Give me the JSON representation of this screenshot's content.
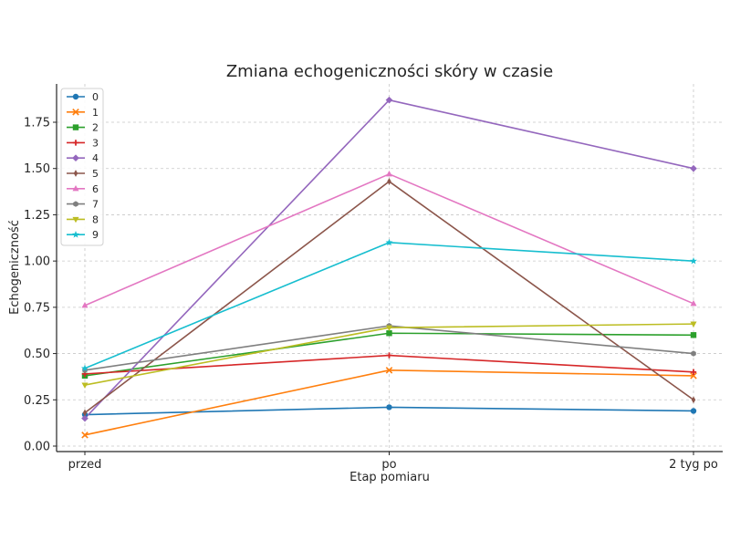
{
  "chart_data": {
    "type": "line",
    "title": "Zmiana echogeniczności skóry w czasie",
    "xlabel": "Etap pomiaru",
    "ylabel": "Echogeniczność",
    "categories": [
      "przed",
      "po",
      "2 tyg po"
    ],
    "ylim": [
      -0.03,
      1.95
    ],
    "yticks": [
      0.0,
      0.25,
      0.5,
      0.75,
      1.0,
      1.25,
      1.5,
      1.75
    ],
    "ytick_labels": [
      "0.00",
      "0.25",
      "0.50",
      "0.75",
      "1.00",
      "1.25",
      "1.50",
      "1.75"
    ],
    "grid": true,
    "legend_position": "top-left",
    "series": [
      {
        "name": "0",
        "color": "#1f77b4",
        "marker": "circle",
        "values": [
          0.17,
          0.21,
          0.19
        ]
      },
      {
        "name": "1",
        "color": "#ff7f0e",
        "marker": "x",
        "values": [
          0.06,
          0.41,
          0.38
        ]
      },
      {
        "name": "2",
        "color": "#2ca02c",
        "marker": "square",
        "values": [
          0.38,
          0.61,
          0.6
        ]
      },
      {
        "name": "3",
        "color": "#d62728",
        "marker": "plus",
        "values": [
          0.39,
          0.49,
          0.4
        ]
      },
      {
        "name": "4",
        "color": "#9467bd",
        "marker": "diamond",
        "values": [
          0.15,
          1.87,
          1.5
        ]
      },
      {
        "name": "5",
        "color": "#8c564b",
        "marker": "thin-diamond",
        "values": [
          0.18,
          1.43,
          0.25
        ]
      },
      {
        "name": "6",
        "color": "#e377c2",
        "marker": "triangle-up",
        "values": [
          0.76,
          1.47,
          0.77
        ]
      },
      {
        "name": "7",
        "color": "#7f7f7f",
        "marker": "hexagon",
        "values": [
          0.41,
          0.65,
          0.5
        ]
      },
      {
        "name": "8",
        "color": "#bcbd22",
        "marker": "triangle-down",
        "values": [
          0.33,
          0.64,
          0.66
        ]
      },
      {
        "name": "9",
        "color": "#17becf",
        "marker": "star",
        "values": [
          0.42,
          1.1,
          1.0
        ]
      }
    ]
  }
}
